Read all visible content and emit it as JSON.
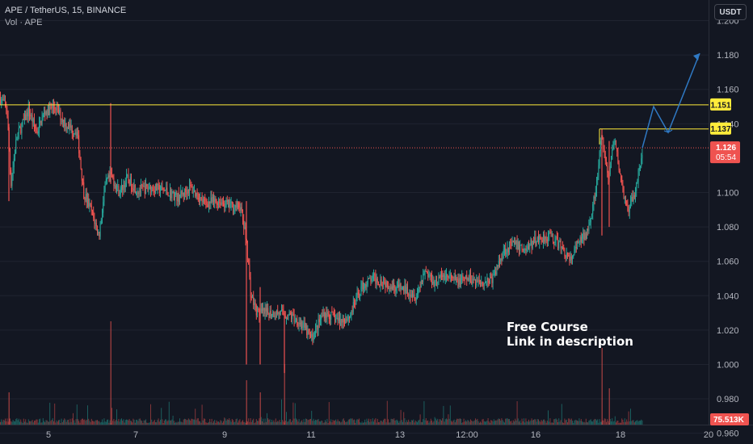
{
  "header": {
    "symbol_line": "APE / TetherUS, 15, BINANCE",
    "volume_line": "Vol · APE"
  },
  "currency_button": "USDT",
  "promo": {
    "line1": "Free Course",
    "line2": "Link in description"
  },
  "colors": {
    "background": "#131722",
    "up": "#26a69a",
    "down": "#ef5350",
    "level_line": "#ffeb3b",
    "projection": "#2f79c4",
    "grid": "#1f2330"
  },
  "chart_data": {
    "type": "candlestick",
    "ylim": [
      0.965,
      1.212
    ],
    "y_ticks": [
      "1.200",
      "1.180",
      "1.160",
      "1.140",
      "1.100",
      "1.080",
      "1.060",
      "1.040",
      "1.020",
      "1.000",
      "0.980",
      "0.960"
    ],
    "x_ticks": [
      "5",
      "7",
      "9",
      "11",
      "13",
      "12:00",
      "16",
      "18",
      "20"
    ],
    "price_trend": [
      [
        0,
        1.155
      ],
      [
        8,
        1.149
      ],
      [
        13,
        1.105
      ],
      [
        20,
        1.132
      ],
      [
        35,
        1.148
      ],
      [
        45,
        1.135
      ],
      [
        55,
        1.147
      ],
      [
        68,
        1.15
      ],
      [
        80,
        1.14
      ],
      [
        95,
        1.135
      ],
      [
        103,
        1.1
      ],
      [
        112,
        1.09
      ],
      [
        122,
        1.075
      ],
      [
        130,
        1.105
      ],
      [
        137,
        1.11
      ],
      [
        147,
        1.1
      ],
      [
        157,
        1.108
      ],
      [
        170,
        1.101
      ],
      [
        185,
        1.103
      ],
      [
        205,
        1.101
      ],
      [
        220,
        1.097
      ],
      [
        235,
        1.103
      ],
      [
        252,
        1.094
      ],
      [
        270,
        1.095
      ],
      [
        287,
        1.092
      ],
      [
        297,
        1.092
      ],
      [
        305,
        1.07
      ],
      [
        310,
        1.04
      ],
      [
        318,
        1.03
      ],
      [
        330,
        1.03
      ],
      [
        345,
        1.03
      ],
      [
        360,
        1.028
      ],
      [
        372,
        1.024
      ],
      [
        385,
        1.015
      ],
      [
        400,
        1.03
      ],
      [
        410,
        1.028
      ],
      [
        420,
        1.025
      ],
      [
        432,
        1.028
      ],
      [
        447,
        1.045
      ],
      [
        460,
        1.05
      ],
      [
        475,
        1.048
      ],
      [
        490,
        1.045
      ],
      [
        505,
        1.043
      ],
      [
        515,
        1.04
      ],
      [
        525,
        1.055
      ],
      [
        537,
        1.048
      ],
      [
        550,
        1.052
      ],
      [
        565,
        1.048
      ],
      [
        580,
        1.05
      ],
      [
        595,
        1.048
      ],
      [
        610,
        1.05
      ],
      [
        622,
        1.066
      ],
      [
        635,
        1.07
      ],
      [
        650,
        1.067
      ],
      [
        665,
        1.073
      ],
      [
        680,
        1.075
      ],
      [
        695,
        1.068
      ],
      [
        705,
        1.06
      ],
      [
        715,
        1.07
      ],
      [
        725,
        1.076
      ],
      [
        737,
        1.1
      ],
      [
        744,
        1.133
      ],
      [
        752,
        1.108
      ],
      [
        760,
        1.13
      ],
      [
        768,
        1.108
      ],
      [
        776,
        1.088
      ],
      [
        784,
        1.098
      ],
      [
        790,
        1.112
      ],
      [
        795,
        1.125
      ]
    ],
    "levels": [
      {
        "price": 1.151,
        "label": "1.151"
      },
      {
        "price": 1.137,
        "label": "1.137"
      }
    ],
    "current_price": {
      "price": 1.126,
      "label": "1.126",
      "countdown": "05:54"
    },
    "volume_label": "75.513K",
    "projection_path": [
      [
        795,
        1.126
      ],
      [
        809,
        1.15
      ],
      [
        827,
        1.135
      ],
      [
        866,
        1.181
      ]
    ]
  }
}
